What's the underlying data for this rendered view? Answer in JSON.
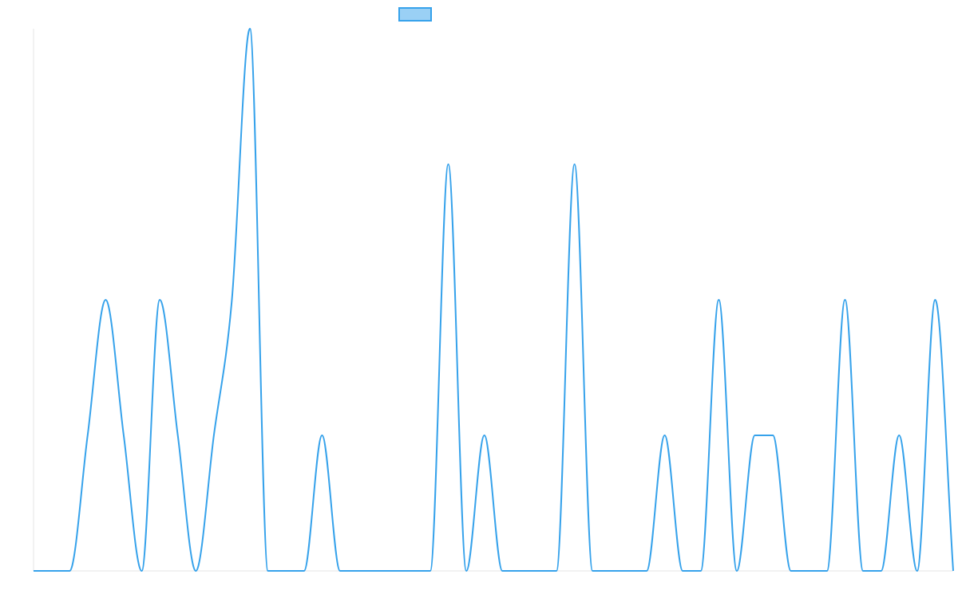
{
  "chart_data": {
    "type": "line",
    "series": [
      {
        "color": "#36a2eb",
        "values": [
          0,
          0,
          0,
          1,
          2,
          1,
          0,
          2,
          1,
          0,
          1,
          2,
          4,
          0,
          0,
          0,
          1,
          0,
          0,
          0,
          0,
          0,
          0,
          3,
          0,
          1,
          0,
          0,
          0,
          0,
          3,
          0,
          0,
          0,
          0,
          1,
          0,
          0,
          2,
          0,
          1,
          1,
          0,
          0,
          0,
          2,
          0,
          0,
          1,
          0,
          2,
          0
        ]
      }
    ],
    "ylim": [
      0,
      4
    ]
  }
}
